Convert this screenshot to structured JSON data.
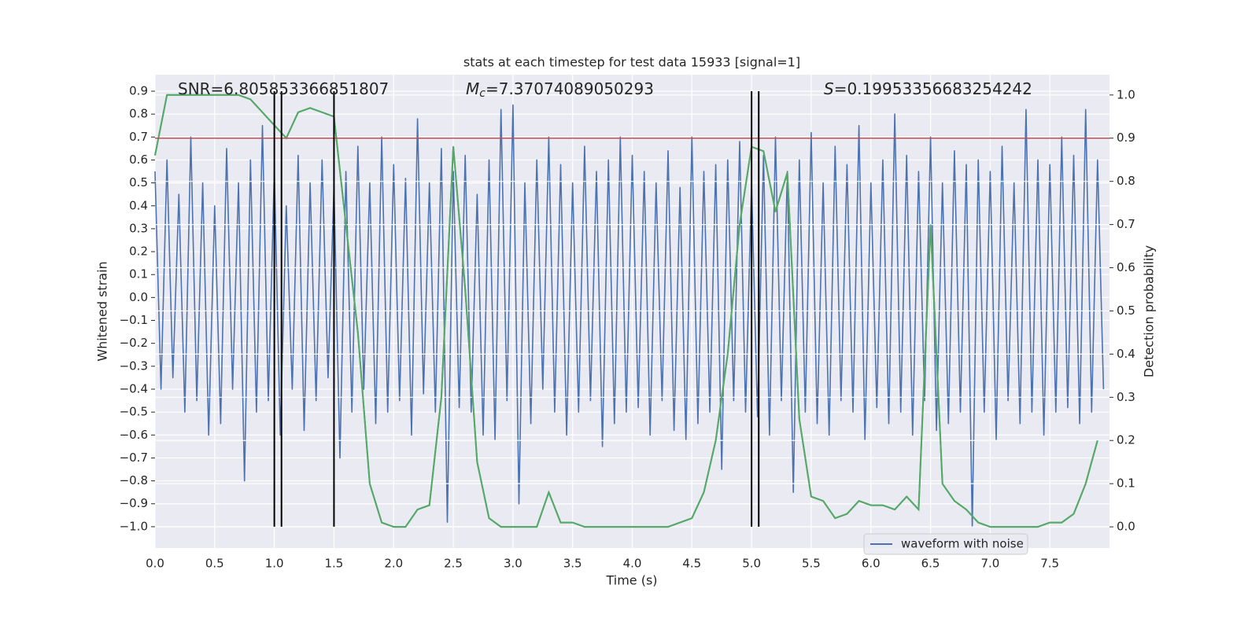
{
  "chart_data": {
    "type": "line",
    "title": "stats at each timestep for test data 15933 [signal=1]",
    "xlabel": "Time (s)",
    "ylabel": "Whitened strain",
    "y2label": "Detection probability",
    "grid": true,
    "legend": "lower right",
    "xlim": [
      0,
      8
    ],
    "ylim": [
      -1.093,
      0.972
    ],
    "y2lim": [
      -0.049,
      1.047
    ],
    "xticks": [
      {
        "value": 0,
        "label": "0.0"
      },
      {
        "value": 0.5,
        "label": "0.5"
      },
      {
        "value": 1,
        "label": "1.0"
      },
      {
        "value": 1.5,
        "label": "1.5"
      },
      {
        "value": 2,
        "label": "2.0"
      },
      {
        "value": 2.5,
        "label": "2.5"
      },
      {
        "value": 3,
        "label": "3.0"
      },
      {
        "value": 3.5,
        "label": "3.5"
      },
      {
        "value": 4,
        "label": "4.0"
      },
      {
        "value": 4.5,
        "label": "4.5"
      },
      {
        "value": 5,
        "label": "5.0"
      },
      {
        "value": 5.5,
        "label": "5.5"
      },
      {
        "value": 6,
        "label": "6.0"
      },
      {
        "value": 6.5,
        "label": "6.5"
      },
      {
        "value": 7,
        "label": "7.0"
      },
      {
        "value": 7.5,
        "label": "7.5"
      }
    ],
    "yticks": [
      {
        "value": 0.9,
        "label": "0.9"
      },
      {
        "value": 0.8,
        "label": "0.8"
      },
      {
        "value": 0.7,
        "label": "0.7"
      },
      {
        "value": 0.6,
        "label": "0.6"
      },
      {
        "value": 0.5,
        "label": "0.5"
      },
      {
        "value": 0.4,
        "label": "0.4"
      },
      {
        "value": 0.3,
        "label": "0.3"
      },
      {
        "value": 0.2,
        "label": "0.2"
      },
      {
        "value": 0.1,
        "label": "0.1"
      },
      {
        "value": 0,
        "label": "0.0"
      },
      {
        "value": -0.1,
        "label": "−0.1"
      },
      {
        "value": -0.2,
        "label": "−0.2"
      },
      {
        "value": -0.3,
        "label": "−0.3"
      },
      {
        "value": -0.4,
        "label": "−0.4"
      },
      {
        "value": -0.5,
        "label": "−0.5"
      },
      {
        "value": -0.6,
        "label": "−0.6"
      },
      {
        "value": -0.7,
        "label": "−0.7"
      },
      {
        "value": -0.8,
        "label": "−0.8"
      },
      {
        "value": -0.9,
        "label": "−0.9"
      },
      {
        "value": -1,
        "label": "−1.0"
      }
    ],
    "y2ticks": [
      {
        "value": 1,
        "label": "1.0"
      },
      {
        "value": 0.9,
        "label": "0.9"
      },
      {
        "value": 0.8,
        "label": "0.8"
      },
      {
        "value": 0.7,
        "label": "0.7"
      },
      {
        "value": 0.6,
        "label": "0.6"
      },
      {
        "value": 0.5,
        "label": "0.5"
      },
      {
        "value": 0.4,
        "label": "0.4"
      },
      {
        "value": 0.3,
        "label": "0.3"
      },
      {
        "value": 0.2,
        "label": "0.2"
      },
      {
        "value": 0.1,
        "label": "0.1"
      },
      {
        "value": 0,
        "label": "0.0"
      }
    ],
    "annotations": [
      {
        "text": "SNR=6.805853366851807"
      },
      {
        "symbol": "M",
        "subscript": "c",
        "text": "=7.37074089050293"
      },
      {
        "symbol": "S",
        "text": "=0.19953356683254242"
      }
    ],
    "threshold": {
      "value": 0.9,
      "axis": "y2",
      "color": "#c44e52"
    },
    "vlines": {
      "x": [
        1.0,
        1.06,
        1.5,
        5.0,
        5.06
      ],
      "ymin": -1.0,
      "ymax": 0.9,
      "color": "#000000"
    },
    "series": [
      {
        "name": "waveform with noise",
        "color": "#4c72b0",
        "x": [
          0,
          0.05,
          0.1,
          0.15,
          0.2,
          0.25,
          0.3,
          0.35,
          0.4,
          0.45,
          0.5,
          0.55,
          0.6,
          0.65,
          0.7,
          0.75,
          0.8,
          0.85,
          0.9,
          0.95,
          1,
          1.05,
          1.1,
          1.15,
          1.2,
          1.25,
          1.3,
          1.35,
          1.4,
          1.45,
          1.5,
          1.55,
          1.6,
          1.65,
          1.7,
          1.75,
          1.8,
          1.85,
          1.9,
          1.95,
          2,
          2.05,
          2.1,
          2.15,
          2.2,
          2.25,
          2.3,
          2.35,
          2.4,
          2.45,
          2.5,
          2.55,
          2.6,
          2.65,
          2.7,
          2.75,
          2.8,
          2.85,
          2.9,
          2.95,
          3,
          3.05,
          3.1,
          3.15,
          3.2,
          3.25,
          3.3,
          3.35,
          3.4,
          3.45,
          3.5,
          3.55,
          3.6,
          3.65,
          3.7,
          3.75,
          3.8,
          3.85,
          3.9,
          3.95,
          4,
          4.05,
          4.1,
          4.15,
          4.2,
          4.25,
          4.3,
          4.35,
          4.4,
          4.45,
          4.5,
          4.55,
          4.6,
          4.65,
          4.7,
          4.75,
          4.8,
          4.85,
          4.9,
          4.95,
          5,
          5.05,
          5.1,
          5.15,
          5.2,
          5.25,
          5.3,
          5.35,
          5.4,
          5.45,
          5.5,
          5.55,
          5.6,
          5.65,
          5.7,
          5.75,
          5.8,
          5.85,
          5.9,
          5.95,
          6,
          6.05,
          6.1,
          6.15,
          6.2,
          6.25,
          6.3,
          6.35,
          6.4,
          6.45,
          6.5,
          6.55,
          6.6,
          6.65,
          6.7,
          6.75,
          6.8,
          6.85,
          6.9,
          6.95,
          7,
          7.05,
          7.1,
          7.15,
          7.2,
          7.25,
          7.3,
          7.35,
          7.4,
          7.45,
          7.5,
          7.55,
          7.6,
          7.65,
          7.7,
          7.75,
          7.8,
          7.85,
          7.9,
          7.95
        ],
        "values": [
          0.55,
          -0.4,
          0.6,
          -0.35,
          0.45,
          -0.5,
          0.7,
          -0.45,
          0.5,
          -0.6,
          0.4,
          -0.55,
          0.65,
          -0.4,
          0.5,
          -0.8,
          0.6,
          -0.5,
          0.75,
          -0.45,
          0.55,
          -0.6,
          0.4,
          -0.4,
          0.62,
          -0.58,
          0.5,
          -0.45,
          0.6,
          -0.35,
          0.48,
          -0.7,
          0.55,
          -0.5,
          0.66,
          -0.4,
          0.5,
          -0.55,
          0.7,
          -0.5,
          0.58,
          -0.45,
          0.52,
          -0.6,
          0.78,
          -0.42,
          0.5,
          -0.5,
          0.65,
          -0.98,
          0.55,
          -0.48,
          0.62,
          -0.5,
          0.45,
          -0.6,
          0.6,
          -0.62,
          0.82,
          -0.45,
          0.84,
          -0.9,
          0.5,
          -0.55,
          0.6,
          -0.4,
          0.7,
          -0.5,
          0.58,
          -0.6,
          0.5,
          -0.5,
          0.66,
          -0.45,
          0.55,
          -0.65,
          0.6,
          -0.55,
          0.7,
          -0.5,
          0.62,
          -0.48,
          0.55,
          -0.6,
          0.5,
          -0.45,
          0.64,
          -0.58,
          0.48,
          -0.62,
          0.7,
          -0.55,
          0.55,
          -0.5,
          0.58,
          -0.75,
          0.6,
          -0.45,
          0.68,
          -0.5,
          0.5,
          -0.52,
          0.62,
          -0.6,
          0.7,
          -0.45,
          0.55,
          -0.85,
          0.6,
          -0.5,
          0.72,
          -0.55,
          0.5,
          -0.6,
          0.66,
          -0.45,
          0.58,
          -0.5,
          0.75,
          -0.62,
          0.5,
          -0.48,
          0.6,
          -0.55,
          0.8,
          -0.5,
          0.62,
          -0.6,
          0.55,
          -0.45,
          0.7,
          -0.58,
          0.5,
          -0.55,
          0.64,
          -0.5,
          0.58,
          -1.0,
          0.6,
          -0.5,
          0.55,
          -0.62,
          0.66,
          -0.45,
          0.5,
          -0.55,
          0.82,
          -0.5,
          0.6,
          -0.6,
          0.58,
          -0.5,
          0.7,
          -0.48,
          0.62,
          -0.55,
          0.82,
          -0.5,
          0.6,
          -0.4
        ]
      },
      {
        "color": "#55a868",
        "axis": "y2",
        "x": [
          0,
          0.1,
          0.2,
          0.3,
          0.4,
          0.5,
          0.6,
          0.7,
          0.8,
          0.9,
          1,
          1.1,
          1.2,
          1.3,
          1.4,
          1.5,
          1.6,
          1.7,
          1.8,
          1.9,
          2,
          2.1,
          2.2,
          2.3,
          2.4,
          2.5,
          2.6,
          2.7,
          2.8,
          2.9,
          3,
          3.1,
          3.2,
          3.3,
          3.4,
          3.5,
          3.6,
          3.7,
          3.8,
          3.9,
          4,
          4.1,
          4.2,
          4.3,
          4.4,
          4.5,
          4.6,
          4.7,
          4.8,
          4.9,
          5,
          5.1,
          5.2,
          5.3,
          5.4,
          5.5,
          5.6,
          5.7,
          5.8,
          5.9,
          6,
          6.1,
          6.2,
          6.3,
          6.4,
          6.5,
          6.6,
          6.7,
          6.8,
          6.9,
          7,
          7.1,
          7.2,
          7.3,
          7.4,
          7.5,
          7.6,
          7.7,
          7.8,
          7.9
        ],
        "values": [
          0.86,
          1.0,
          1.0,
          1.0,
          1.0,
          1.0,
          1.0,
          1.0,
          0.99,
          0.96,
          0.93,
          0.9,
          0.96,
          0.97,
          0.96,
          0.95,
          0.7,
          0.45,
          0.1,
          0.01,
          0.0,
          0.0,
          0.04,
          0.05,
          0.3,
          0.88,
          0.55,
          0.15,
          0.02,
          0.0,
          0.0,
          0.0,
          0.0,
          0.08,
          0.01,
          0.01,
          0.0,
          0.0,
          0.0,
          0.0,
          0.0,
          0.0,
          0.0,
          0.0,
          0.01,
          0.02,
          0.08,
          0.2,
          0.4,
          0.7,
          0.88,
          0.87,
          0.73,
          0.82,
          0.25,
          0.07,
          0.06,
          0.02,
          0.03,
          0.06,
          0.05,
          0.05,
          0.04,
          0.07,
          0.04,
          0.7,
          0.1,
          0.06,
          0.04,
          0.01,
          0.0,
          0.0,
          0.0,
          0.0,
          0.0,
          0.01,
          0.01,
          0.03,
          0.1,
          0.2
        ]
      }
    ]
  }
}
